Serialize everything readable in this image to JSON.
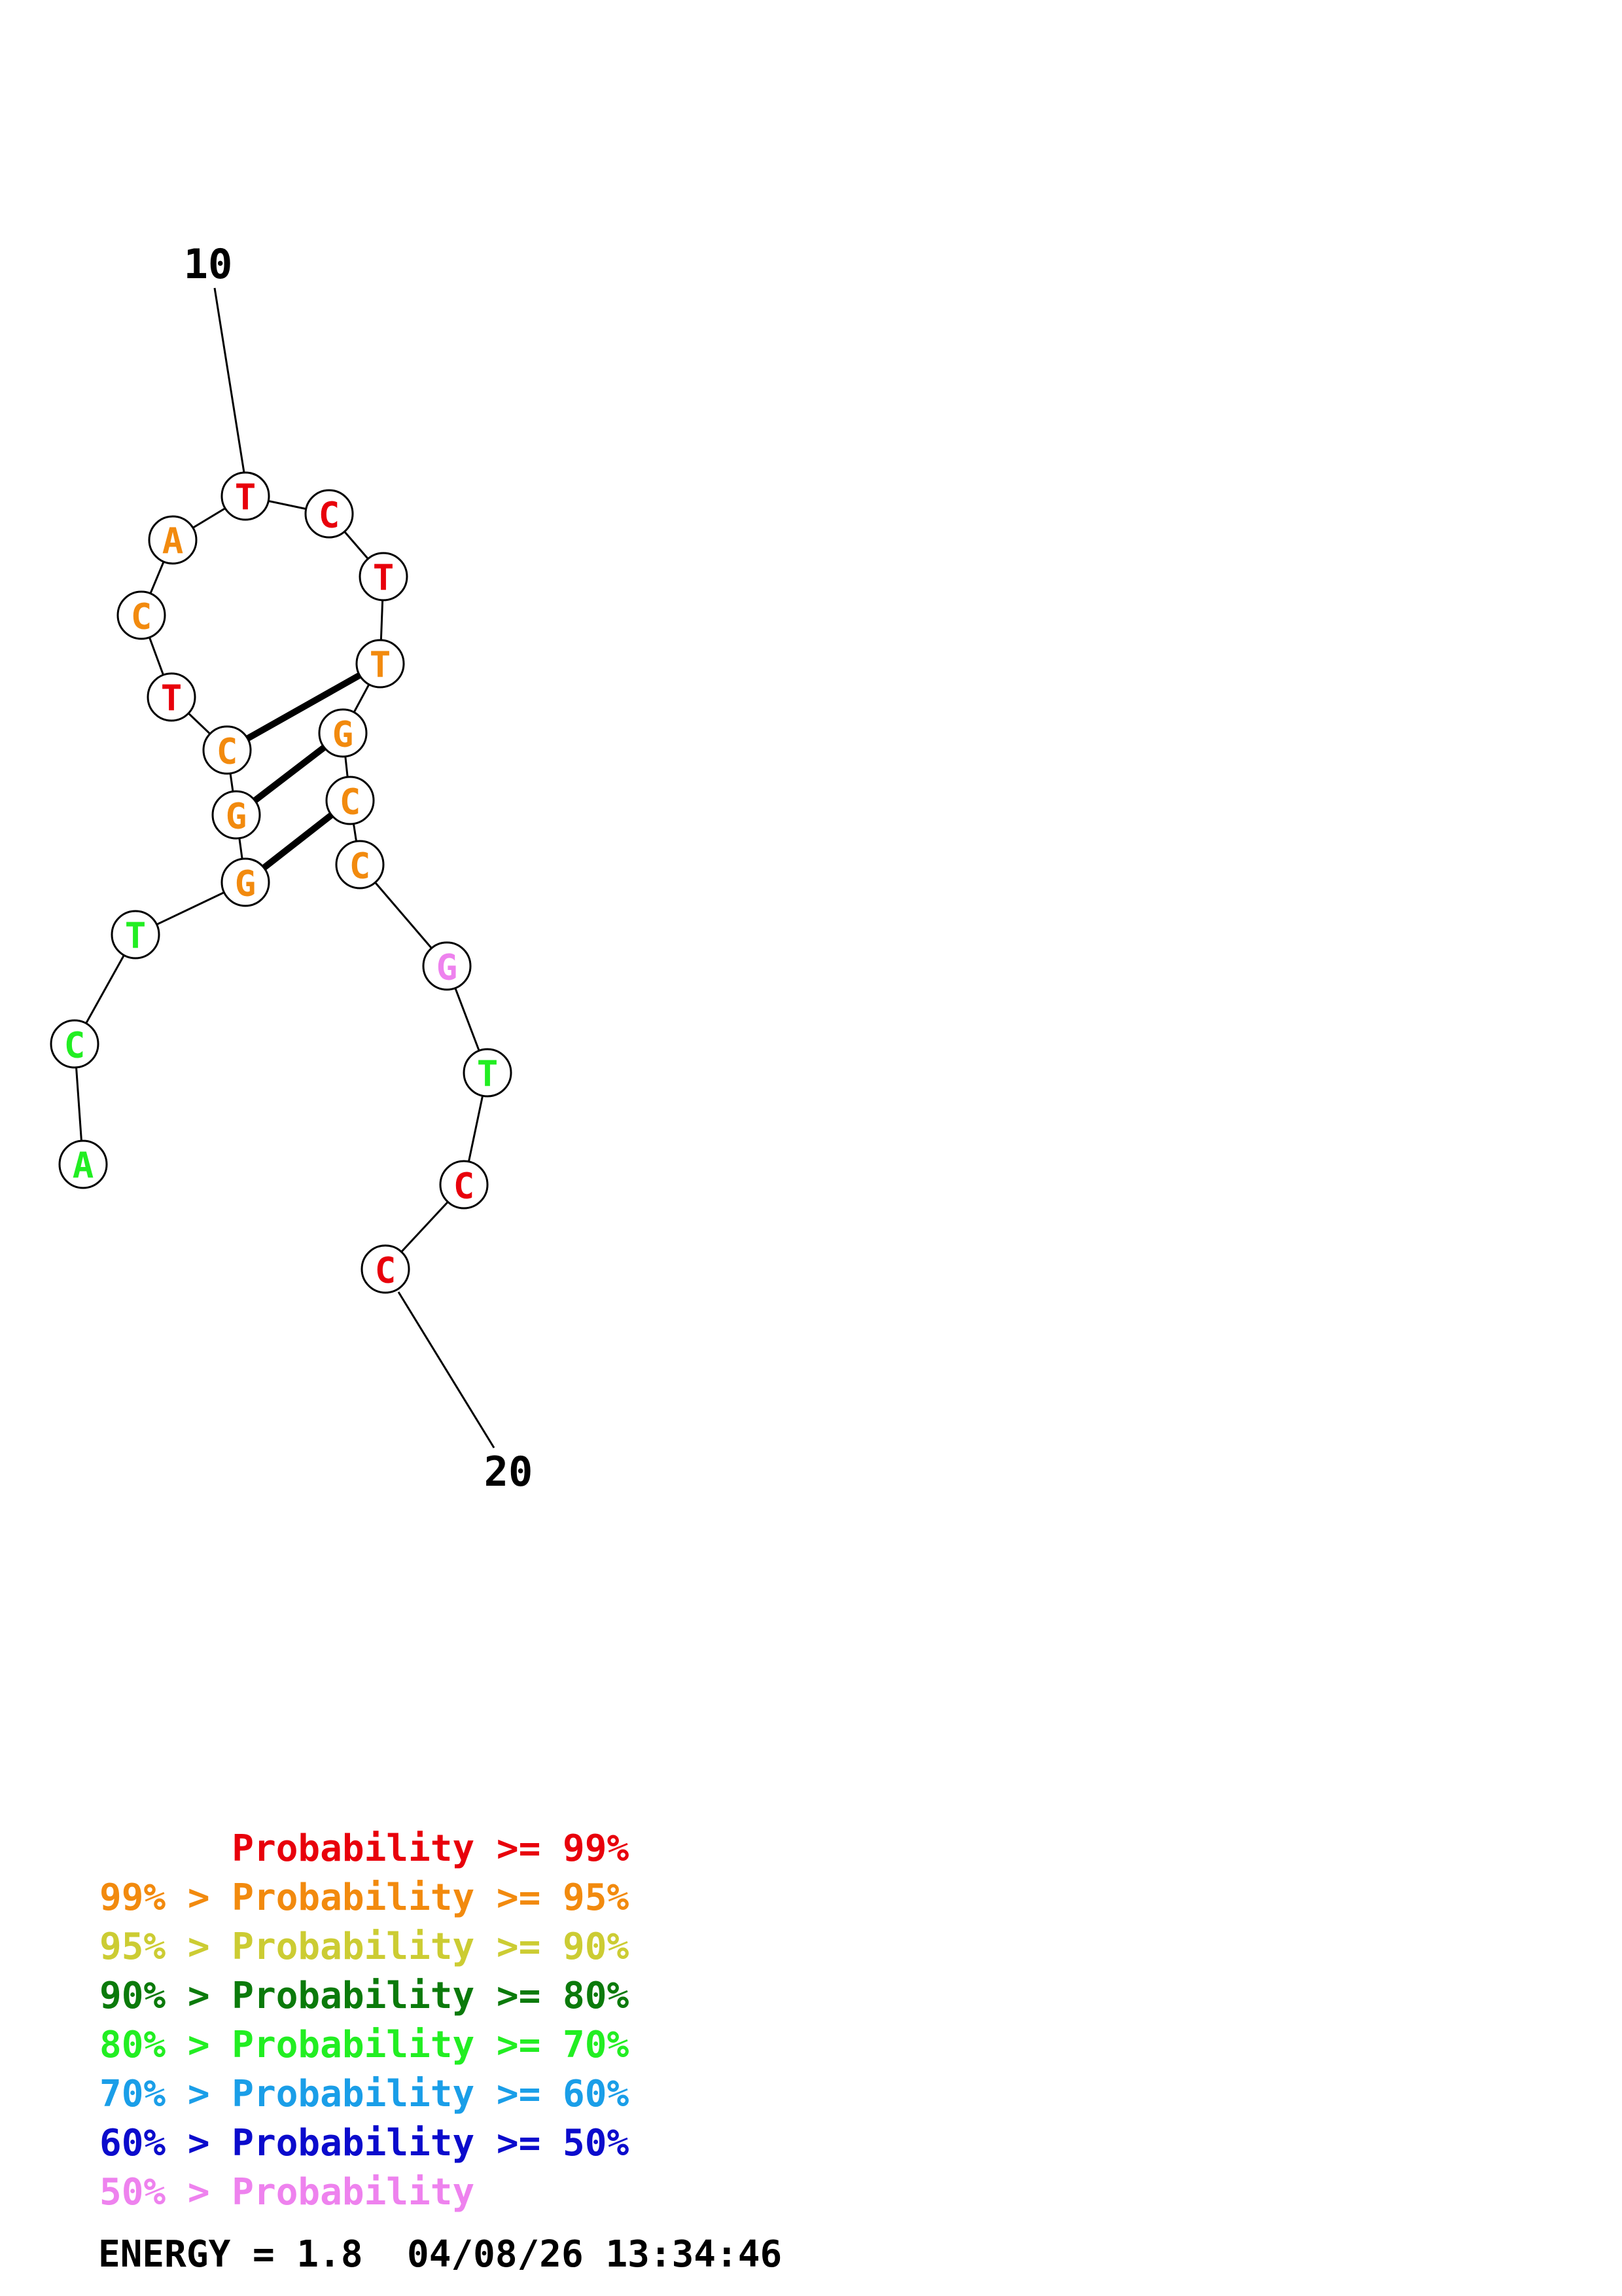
{
  "structure": {
    "sequence": [
      "A",
      "C",
      "T",
      "G",
      "G",
      "C",
      "T",
      "C",
      "A",
      "T",
      "C",
      "T",
      "T",
      "G",
      "C",
      "C",
      "G",
      "T",
      "C",
      "C"
    ],
    "probability_class": [
      4,
      4,
      4,
      1,
      1,
      1,
      0,
      1,
      1,
      0,
      0,
      0,
      1,
      1,
      1,
      1,
      7,
      4,
      0,
      0
    ],
    "pairs": [
      [
        4,
        15
      ],
      [
        5,
        14
      ],
      [
        6,
        13
      ]
    ],
    "position_labels": [
      {
        "index": 10,
        "text": "10"
      },
      {
        "index": 20,
        "text": "20"
      }
    ]
  },
  "legend": {
    "colors": [
      "#e8000b",
      "#f28a0e",
      "#cccc33",
      "#0b7a0b",
      "#22ee22",
      "#1a9ee8",
      "#0b0bcc",
      "#ee82ee"
    ],
    "lines": [
      "      Probability >= 99%",
      "99% > Probability >= 95%",
      "95% > Probability >= 90%",
      "90% > Probability >= 80%",
      "80% > Probability >= 70%",
      "70% > Probability >= 60%",
      "60% > Probability >= 50%",
      "50% > Probability"
    ]
  },
  "footer": {
    "energy_text": "ENERGY = 1.8  04/08/26 13:34:46"
  }
}
